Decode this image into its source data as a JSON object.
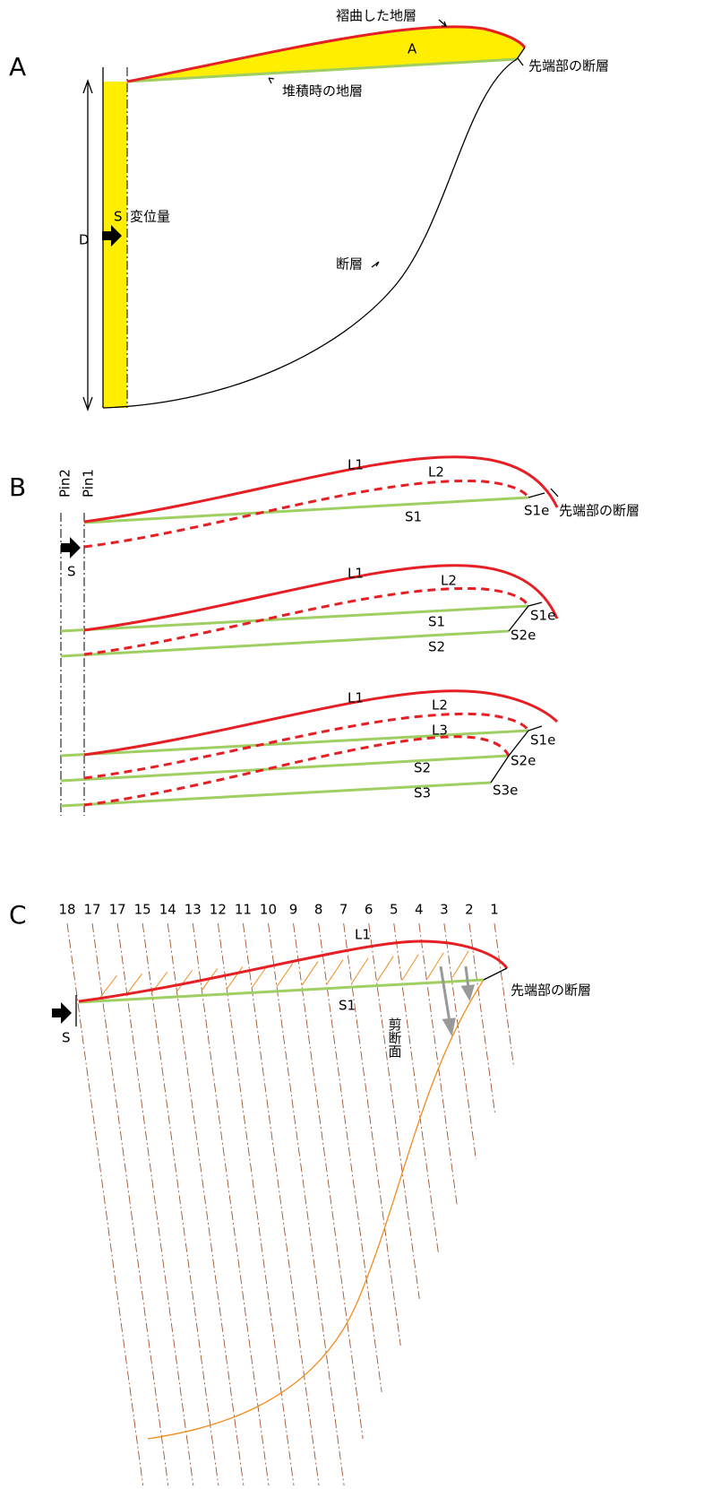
{
  "panel_a": {
    "label": "A",
    "folded_layer": "褶曲した地層",
    "area_label": "A",
    "tip_fault": "先端部の断層",
    "original_layer": "堆積時の地層",
    "shift": "S",
    "displacement": "変位量",
    "depth": "D",
    "fault": "断層"
  },
  "panel_b": {
    "label": "B",
    "pins": [
      "Pin2",
      "Pin1"
    ],
    "shift": "S",
    "sections": [
      {
        "L1": "L1",
        "L2": "L2",
        "S1": "S1",
        "S1e": "S1e",
        "tip_fault": "先端部の断層"
      },
      {
        "L1": "L1",
        "L2": "L2",
        "S1": "S1",
        "S1e": "S1e",
        "S2": "S2",
        "S2e": "S2e"
      },
      {
        "L1": "L1",
        "L2": "L2",
        "L3": "L3",
        "S1e": "S1e",
        "S2": "S2",
        "S2e": "S2e",
        "S3": "S3",
        "S3e": "S3e"
      }
    ]
  },
  "panel_c": {
    "label": "C",
    "column_numbers": [
      "18",
      "17",
      "17",
      "15",
      "14",
      "13",
      "12",
      "11",
      "10",
      "9",
      "8",
      "7",
      "6",
      "5",
      "4",
      "3",
      "2",
      "1"
    ],
    "L1": "L1",
    "S1": "S1",
    "tip_fault": "先端部の断層",
    "shift": "S",
    "shear_plane": "剪断面"
  }
}
